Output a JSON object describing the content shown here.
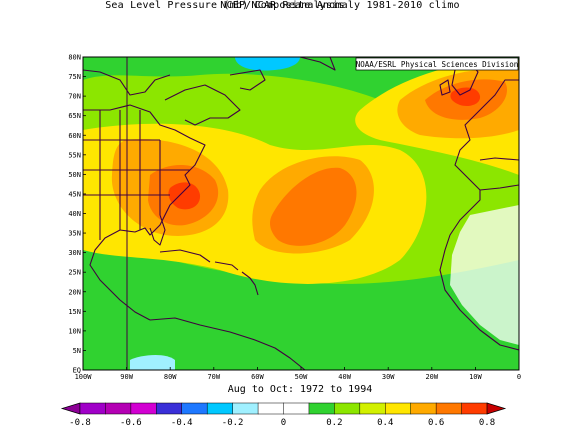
{
  "title": "NCEP/NCAR Reanalysis",
  "subtitle": "Sea Level Pressure (mb) Composite Anomaly 1981-2010 climo",
  "credit": "NOAA/ESRL Physical Sciences Division",
  "period": "Aug to Oct: 1972 to 1994",
  "map": {
    "lon_range": [
      -100,
      0
    ],
    "lat_range": [
      0,
      80
    ],
    "lat_ticks": [
      "80N",
      "75N",
      "70N",
      "65N",
      "60N",
      "55N",
      "50N",
      "45N",
      "40N",
      "35N",
      "30N",
      "25N",
      "20N",
      "15N",
      "10N",
      "5N",
      "EQ"
    ],
    "lon_ticks": [
      "100W",
      "90W",
      "80W",
      "70W",
      "60W",
      "50W",
      "40W",
      "30W",
      "20W",
      "10W",
      "0"
    ]
  },
  "colorbar": {
    "labels": [
      "-0.8",
      "-0.6",
      "-0.4",
      "-0.2",
      "0",
      "0.2",
      "0.4",
      "0.6",
      "0.8"
    ],
    "colors": [
      "#a000c8",
      "#b400b4",
      "#d200d2",
      "#3a2fd8",
      "#1e78ff",
      "#00c8ff",
      "#a0f0ff",
      "#ffffff",
      "#ffffff",
      "#30d230",
      "#8ce600",
      "#d2f000",
      "#ffe600",
      "#ffaa00",
      "#ff7800",
      "#ff3c00"
    ]
  }
}
